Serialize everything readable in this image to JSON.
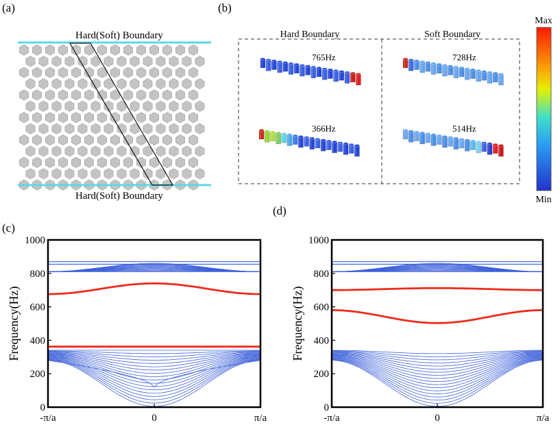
{
  "panels": {
    "a": {
      "label": "(a)",
      "top_boundary": "Hard(Soft) Boundary",
      "bottom_boundary": "Hard(Soft) Boundary",
      "boundary_color": "#5ad8e6",
      "cell_color": "#c4c4c4"
    },
    "b": {
      "label": "(b)",
      "left_title": "Hard Boundary",
      "right_title": "Soft Boundary",
      "modes": [
        {
          "freq": "765Hz",
          "boundary": "hard",
          "localized": "right-end"
        },
        {
          "freq": "366Hz",
          "boundary": "hard",
          "localized": "left-end"
        },
        {
          "freq": "728Hz",
          "boundary": "soft",
          "localized": "left-end"
        },
        {
          "freq": "514Hz",
          "boundary": "soft",
          "localized": "right-end"
        }
      ],
      "colorbar": {
        "max_label": "Max",
        "min_label": "Min",
        "colors": [
          "#ff1a00",
          "#ffb000",
          "#d8f000",
          "#40e0d0",
          "#2a9df4",
          "#2233cc"
        ]
      }
    },
    "c": {
      "label": "(c)"
    },
    "d": {
      "label": "(d)"
    }
  },
  "chart_data": [
    {
      "type": "line",
      "panel": "(c)",
      "ylabel": "Frequency(Hz)",
      "xlabel": "",
      "xticks": [
        "-π/a",
        "0",
        "π/a"
      ],
      "yticks": [
        "0",
        "200",
        "400",
        "600",
        "800",
        "1000"
      ],
      "ylim": [
        0,
        1000
      ],
      "xlim": [
        -1,
        1
      ],
      "bulk_upper": {
        "edge_freq": 810,
        "center_freq": 860,
        "count": 12,
        "flat": [
          855,
          870
        ]
      },
      "bulk_lower": {
        "edge_freq": 340,
        "center_freq_top": 340,
        "count": 18,
        "outer_edge_freq": 280
      },
      "edge_states": [
        {
          "name": "edge-upper",
          "edge_freq": 676,
          "center_freq": 740
        },
        {
          "name": "edge-lower",
          "edge_freq": 362,
          "center_freq": 362
        }
      ],
      "colors": {
        "bulk": "#3b5fd9",
        "edge": "#ee2a1b"
      }
    },
    {
      "type": "line",
      "panel": "(d)",
      "ylabel": "Frequency(Hz)",
      "xlabel": "",
      "xticks": [
        "-π/a",
        "0",
        "π/a"
      ],
      "yticks": [
        "0",
        "200",
        "400",
        "600",
        "800",
        "1000"
      ],
      "ylim": [
        0,
        1000
      ],
      "xlim": [
        -1,
        1
      ],
      "bulk_upper": {
        "edge_freq": 810,
        "center_freq": 860,
        "count": 12,
        "flat": [
          855,
          870
        ]
      },
      "bulk_lower": {
        "edge_freq": 340,
        "center_freq_top": 320,
        "count": 18,
        "outer_edge_freq": 340
      },
      "edge_states": [
        {
          "name": "edge-upper",
          "edge_freq": 700,
          "center_freq": 712
        },
        {
          "name": "edge-lower",
          "edge_freq": 580,
          "center_freq": 503
        }
      ],
      "colors": {
        "bulk": "#3b5fd9",
        "edge": "#ee2a1b"
      }
    }
  ]
}
